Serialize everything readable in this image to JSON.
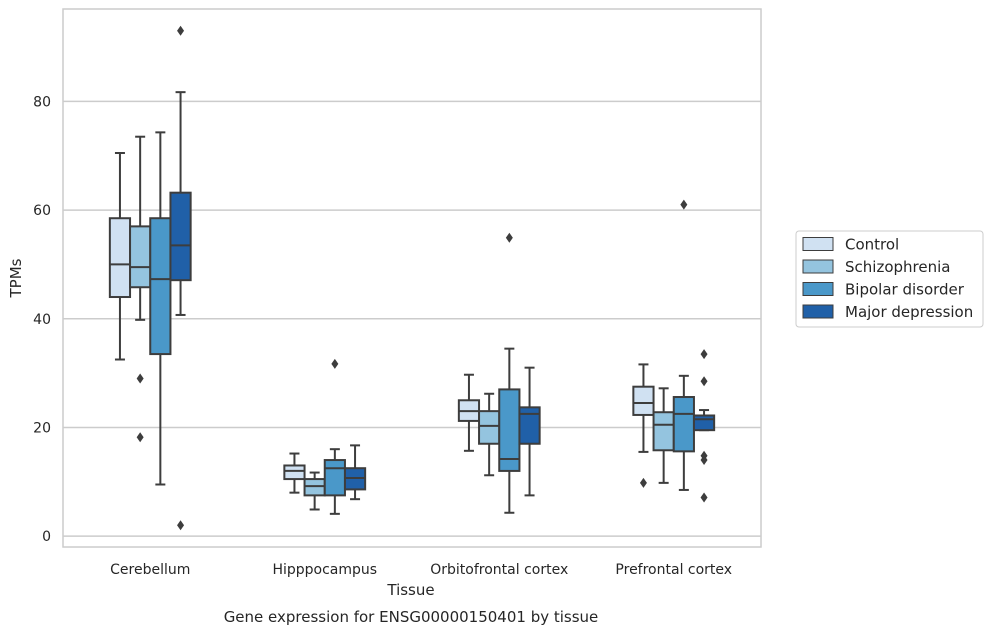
{
  "chart_data": {
    "type": "boxplot",
    "xlabel": "Tissue",
    "ylabel": "TPMs",
    "caption": "Gene expression for ENSG00000150401 by tissue",
    "categories": [
      "Cerebellum",
      "Hipppocampus",
      "Orbitofrontal cortex",
      "Prefrontal cortex"
    ],
    "ylim": [
      -2,
      97
    ],
    "yticks": [
      0,
      20,
      40,
      60,
      80
    ],
    "grid": true,
    "legend_position": "right",
    "series": [
      {
        "name": "Control",
        "color": "#d0e1f2",
        "boxes": [
          {
            "whisker_low": 32.5,
            "q1": 44,
            "median": 50,
            "q3": 58.5,
            "whisker_high": 70.5,
            "outliers": []
          },
          {
            "whisker_low": 8,
            "q1": 10.5,
            "median": 12,
            "q3": 13,
            "whisker_high": 15.2,
            "outliers": []
          },
          {
            "whisker_low": 15.7,
            "q1": 21.2,
            "median": 23,
            "q3": 25,
            "whisker_high": 29.7,
            "outliers": []
          },
          {
            "whisker_low": 15.5,
            "q1": 22.3,
            "median": 24.5,
            "q3": 27.5,
            "whisker_high": 31.6,
            "outliers": [
              9.8
            ]
          }
        ]
      },
      {
        "name": "Schizophrenia",
        "color": "#94c4df",
        "boxes": [
          {
            "whisker_low": 39.8,
            "q1": 45.8,
            "median": 49.5,
            "q3": 57,
            "whisker_high": 73.5,
            "outliers": [
              29,
              18.2
            ]
          },
          {
            "whisker_low": 4.9,
            "q1": 7.5,
            "median": 9.2,
            "q3": 10.5,
            "whisker_high": 11.7,
            "outliers": []
          },
          {
            "whisker_low": 11.2,
            "q1": 17,
            "median": 20.3,
            "q3": 23,
            "whisker_high": 26.2,
            "outliers": []
          },
          {
            "whisker_low": 9.8,
            "q1": 15.8,
            "median": 20.5,
            "q3": 22.8,
            "whisker_high": 27.2,
            "outliers": []
          }
        ]
      },
      {
        "name": "Bipolar disorder",
        "color": "#4a98c9",
        "boxes": [
          {
            "whisker_low": 9.5,
            "q1": 33.5,
            "median": 47.3,
            "q3": 58.5,
            "whisker_high": 74.3,
            "outliers": []
          },
          {
            "whisker_low": 4.1,
            "q1": 7.5,
            "median": 12.5,
            "q3": 14,
            "whisker_high": 16,
            "outliers": [
              31.7
            ]
          },
          {
            "whisker_low": 4.3,
            "q1": 12,
            "median": 14.2,
            "q3": 27,
            "whisker_high": 34.5,
            "outliers": [
              54.9
            ]
          },
          {
            "whisker_low": 8.5,
            "q1": 15.6,
            "median": 22.5,
            "q3": 25.6,
            "whisker_high": 29.5,
            "outliers": [
              61
            ]
          }
        ]
      },
      {
        "name": "Major depression",
        "color": "#2060a8",
        "boxes": [
          {
            "whisker_low": 40.7,
            "q1": 47.1,
            "median": 53.5,
            "q3": 63.2,
            "whisker_high": 81.7,
            "outliers": [
              93,
              2
            ]
          },
          {
            "whisker_low": 6.8,
            "q1": 8.6,
            "median": 10.7,
            "q3": 12.5,
            "whisker_high": 16.7,
            "outliers": []
          },
          {
            "whisker_low": 7.5,
            "q1": 17,
            "median": 22.5,
            "q3": 23.7,
            "whisker_high": 31,
            "outliers": []
          },
          {
            "whisker_low": 19.5,
            "q1": 19.5,
            "median": 21.5,
            "q3": 22.2,
            "whisker_high": 23.2,
            "outliers": [
              33.5,
              28.5,
              14.8,
              14,
              7.1
            ]
          }
        ]
      }
    ]
  }
}
